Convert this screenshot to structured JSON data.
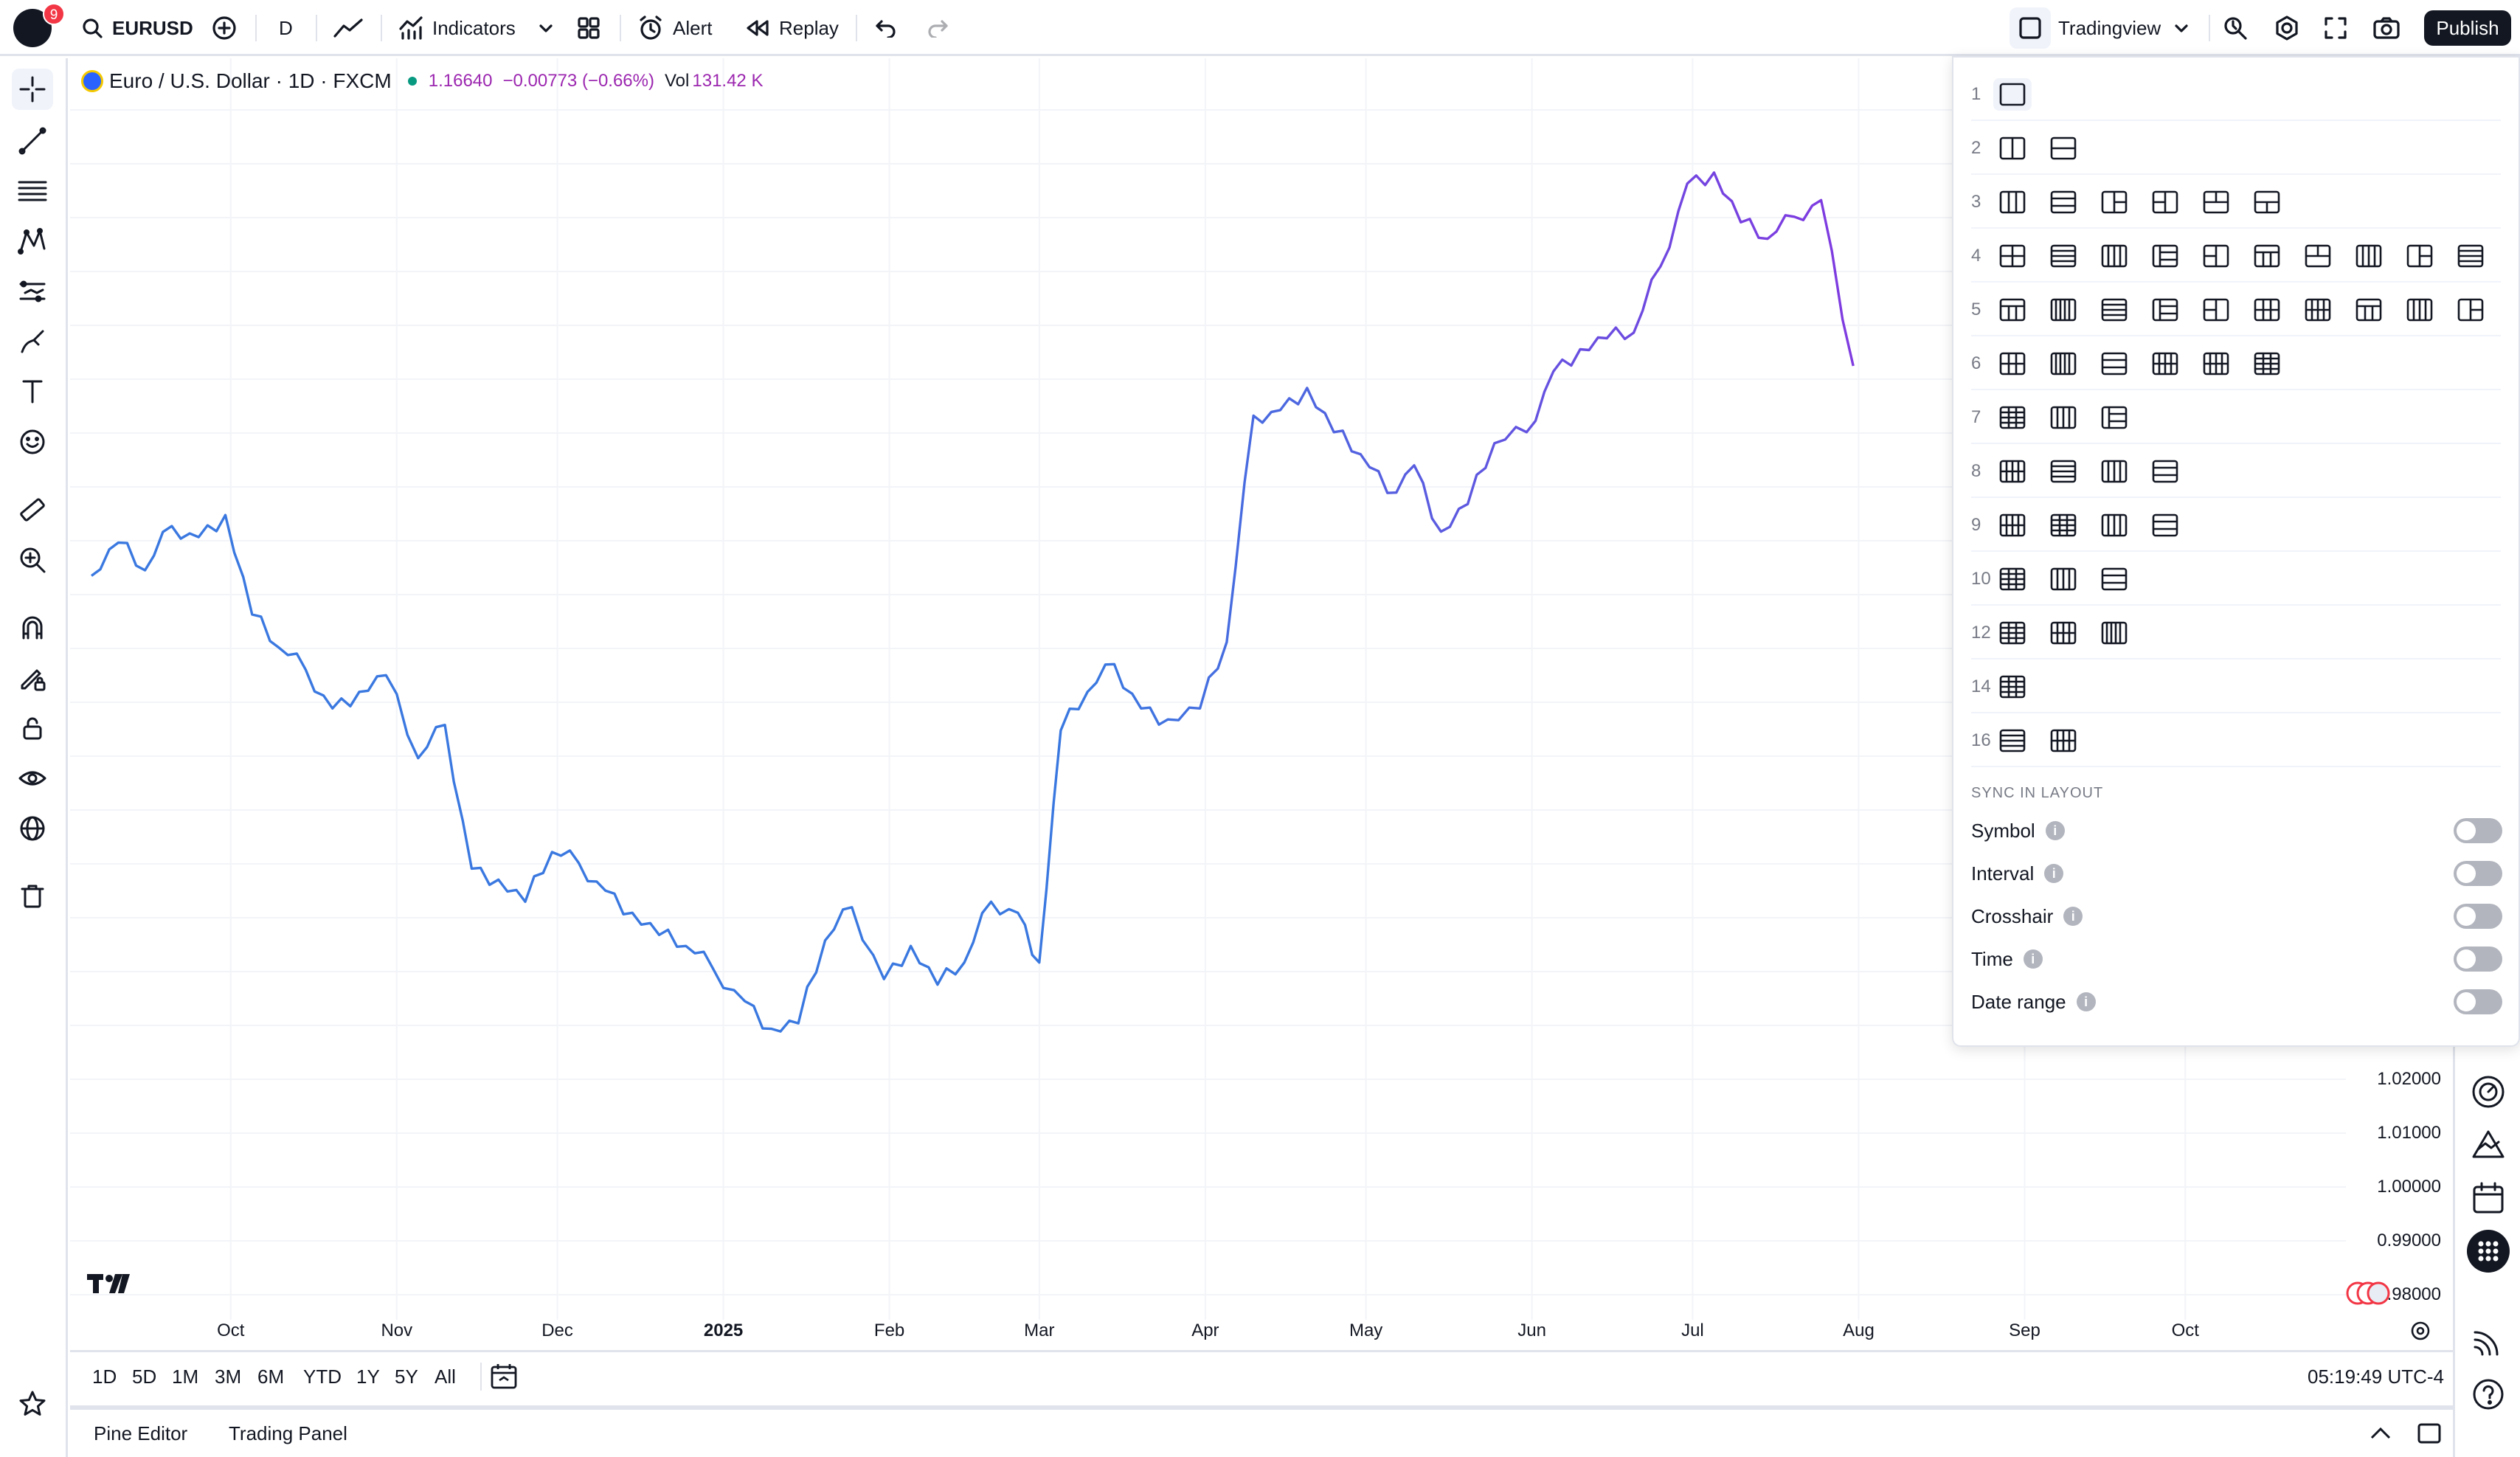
{
  "app": {
    "notification_count": "9",
    "accent_color": "#131722",
    "up_color": "#089981",
    "down_color": "#f23645"
  },
  "toolbar": {
    "symbol": "EURUSD",
    "interval": "D",
    "indicators_label": "Indicators",
    "alert_label": "Alert",
    "replay_label": "Replay",
    "layout_name": "Tradingview",
    "publish_label": "Publish"
  },
  "legend": {
    "title": "Euro / U.S. Dollar · 1D · FXCM",
    "last_price": "1.16640",
    "change": "−0.00773 (−0.66%)",
    "volume_label": "Vol",
    "volume_value": "131.42 K"
  },
  "left_tools": [
    "crosshair-icon",
    "trendline-icon",
    "fib-icon",
    "pattern-icon",
    "forecast-icon",
    "brush-icon",
    "text-icon",
    "emoji-icon",
    "ruler-icon",
    "zoom-icon",
    "magnet-icon",
    "lock-drawing-icon",
    "lock-icon",
    "eye-icon",
    "globe-icon",
    "trash-icon"
  ],
  "price_scale": {
    "labels": [
      "1.02000",
      "1.01000",
      "1.00000",
      "0.99000",
      "0.98000"
    ]
  },
  "time_axis": {
    "labels": [
      "Oct",
      "Nov",
      "Dec",
      "2025",
      "Feb",
      "Mar",
      "Apr",
      "May",
      "Jun",
      "Jul",
      "Aug",
      "Sep",
      "Oct"
    ]
  },
  "range_bar": {
    "ranges": [
      "1D",
      "5D",
      "1M",
      "3M",
      "6M",
      "YTD",
      "1Y",
      "5Y",
      "All"
    ],
    "clock": "05:19:49 UTC-4"
  },
  "bottom_panel": {
    "pine_editor": "Pine Editor",
    "trading_panel": "Trading Panel"
  },
  "layout_menu": {
    "rows": [
      {
        "count": "1",
        "options": 1
      },
      {
        "count": "2",
        "options": 2
      },
      {
        "count": "3",
        "options": 6
      },
      {
        "count": "4",
        "options": 10
      },
      {
        "count": "5",
        "options": 10
      },
      {
        "count": "6",
        "options": 6
      },
      {
        "count": "7",
        "options": 3
      },
      {
        "count": "8",
        "options": 4
      },
      {
        "count": "9",
        "options": 4
      },
      {
        "count": "10",
        "options": 3
      },
      {
        "count": "12",
        "options": 3
      },
      {
        "count": "14",
        "options": 1
      },
      {
        "count": "16",
        "options": 2
      }
    ],
    "sync_title": "SYNC IN LAYOUT",
    "sync_items": [
      "Symbol",
      "Interval",
      "Crosshair",
      "Time",
      "Date range"
    ]
  },
  "chart_data": {
    "type": "line",
    "x": [
      "2024-09-05",
      "2024-09-10",
      "2024-09-15",
      "2024-09-20",
      "2024-09-25",
      "2024-09-30",
      "2024-10-05",
      "2024-10-10",
      "2024-10-15",
      "2024-10-20",
      "2024-10-25",
      "2024-10-30",
      "2024-11-05",
      "2024-11-10",
      "2024-11-15",
      "2024-11-20",
      "2024-11-25",
      "2024-11-30",
      "2024-12-05",
      "2024-12-10",
      "2024-12-15",
      "2024-12-20",
      "2024-12-25",
      "2024-12-30",
      "2025-01-05",
      "2025-01-10",
      "2025-01-15",
      "2025-01-20",
      "2025-01-25",
      "2025-01-31",
      "2025-02-05",
      "2025-02-10",
      "2025-02-15",
      "2025-02-20",
      "2025-02-25",
      "2025-03-01",
      "2025-03-05",
      "2025-03-10",
      "2025-03-15",
      "2025-03-20",
      "2025-03-25",
      "2025-03-31",
      "2025-04-05",
      "2025-04-10",
      "2025-04-15",
      "2025-04-20",
      "2025-04-25",
      "2025-04-30",
      "2025-05-05",
      "2025-05-10",
      "2025-05-15",
      "2025-05-20",
      "2025-05-25",
      "2025-05-31",
      "2025-06-05",
      "2025-06-10",
      "2025-06-15",
      "2025-06-20",
      "2025-06-25",
      "2025-06-30",
      "2025-07-05",
      "2025-07-10",
      "2025-07-15",
      "2025-07-20",
      "2025-07-25",
      "2025-07-31"
    ],
    "values": [
      1.107,
      1.113,
      1.108,
      1.116,
      1.114,
      1.118,
      1.1,
      1.094,
      1.09,
      1.083,
      1.086,
      1.089,
      1.074,
      1.08,
      1.054,
      1.052,
      1.048,
      1.057,
      1.055,
      1.05,
      1.046,
      1.042,
      1.04,
      1.036,
      1.03,
      1.025,
      1.026,
      1.041,
      1.047,
      1.034,
      1.04,
      1.033,
      1.037,
      1.048,
      1.046,
      1.037,
      1.079,
      1.086,
      1.091,
      1.083,
      1.081,
      1.083,
      1.095,
      1.136,
      1.137,
      1.141,
      1.133,
      1.129,
      1.122,
      1.127,
      1.115,
      1.12,
      1.131,
      1.133,
      1.144,
      1.148,
      1.15,
      1.151,
      1.163,
      1.178,
      1.18,
      1.171,
      1.168,
      1.172,
      1.175,
      1.145
    ],
    "ylabel": "",
    "xlabel": "",
    "colors": [
      "#3a78e0",
      "#9b2bdb"
    ]
  }
}
